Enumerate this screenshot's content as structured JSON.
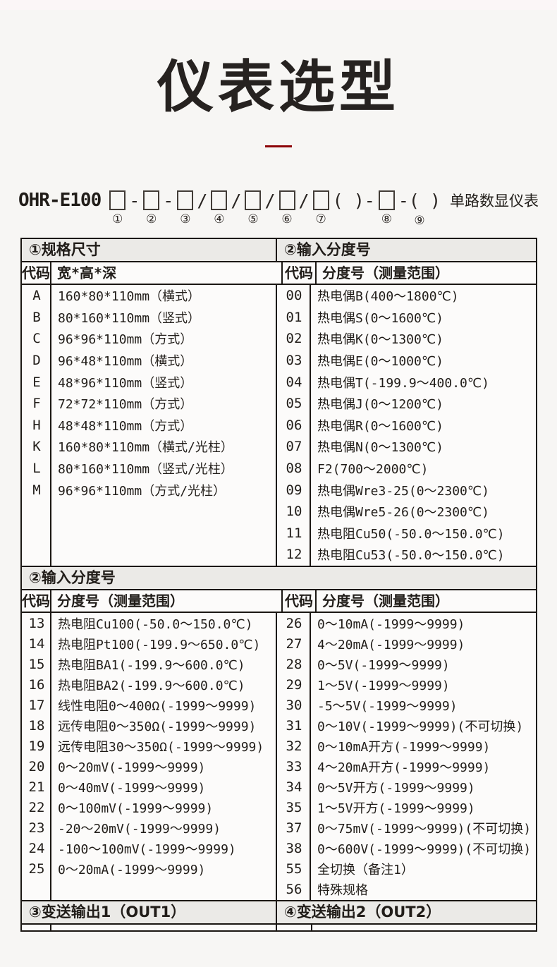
{
  "page": {
    "title": "仪表选型"
  },
  "model_code": {
    "prefix": "OHR-E100",
    "suffix": "单路数显仪表",
    "tokens": [
      {
        "box": true,
        "n": "①"
      },
      {
        "box": false,
        "v": "-"
      },
      {
        "box": true,
        "n": "②"
      },
      {
        "box": false,
        "v": "-"
      },
      {
        "box": true,
        "n": "③"
      },
      {
        "box": false,
        "v": "/"
      },
      {
        "box": true,
        "n": "④"
      },
      {
        "box": false,
        "v": "/"
      },
      {
        "box": true,
        "n": "⑤"
      },
      {
        "box": false,
        "v": "/"
      },
      {
        "box": true,
        "n": "⑥"
      },
      {
        "box": false,
        "v": "/"
      },
      {
        "box": true,
        "n": "⑦"
      },
      {
        "box": false,
        "v": "( )-"
      },
      {
        "box": true,
        "n": "⑧"
      },
      {
        "box": false,
        "v": "-( )",
        "n": "⑨"
      }
    ]
  },
  "section1": {
    "left": {
      "header": "①规格尺寸",
      "col_code": "代码",
      "col_desc": "宽*高*深",
      "rows": [
        [
          "A",
          "160*80*110mm（横式）"
        ],
        [
          "B",
          "80*160*110mm（竖式）"
        ],
        [
          "C",
          "96*96*110mm（方式）"
        ],
        [
          "D",
          "96*48*110mm（横式）"
        ],
        [
          "E",
          "48*96*110mm（竖式）"
        ],
        [
          "F",
          "72*72*110mm（方式）"
        ],
        [
          "H",
          "48*48*110mm（方式）"
        ],
        [
          "K",
          "160*80*110mm（横式/光柱）"
        ],
        [
          "L",
          "80*160*110mm（竖式/光柱）"
        ],
        [
          "M",
          "96*96*110mm（方式/光柱）"
        ]
      ]
    },
    "right": {
      "header": "②输入分度号",
      "col_code": "代码",
      "col_desc": "分度号（测量范围）",
      "rows": [
        [
          "00",
          "热电偶B(400～1800℃)"
        ],
        [
          "01",
          "热电偶S(0～1600℃)"
        ],
        [
          "02",
          "热电偶K(0～1300℃)"
        ],
        [
          "03",
          "热电偶E(0～1000℃)"
        ],
        [
          "04",
          "热电偶T(-199.9～400.0℃)"
        ],
        [
          "05",
          "热电偶J(0～1200℃)"
        ],
        [
          "06",
          "热电偶R(0～1600℃)"
        ],
        [
          "07",
          "热电偶N(0～1300℃)"
        ],
        [
          "08",
          "F2(700～2000℃)"
        ],
        [
          "09",
          "热电偶Wre3-25(0～2300℃)"
        ],
        [
          "10",
          "热电偶Wre5-26(0～2300℃)"
        ],
        [
          "11",
          "热电阻Cu50(-50.0～150.0℃)"
        ],
        [
          "12",
          "热电阻Cu53(-50.0～150.0℃)"
        ]
      ]
    }
  },
  "section2": {
    "header": "②输入分度号",
    "left": {
      "col_code": "代码",
      "col_desc": "分度号（测量范围）",
      "rows": [
        [
          "13",
          "热电阻Cu100(-50.0～150.0℃)"
        ],
        [
          "14",
          "热电阻Pt100(-199.9～650.0℃)"
        ],
        [
          "15",
          "热电阻BA1(-199.9～600.0℃)"
        ],
        [
          "16",
          "热电阻BA2(-199.9～600.0℃)"
        ],
        [
          "17",
          "线性电阻0～400Ω(-1999～9999)"
        ],
        [
          "18",
          "远传电阻0～350Ω(-1999～9999)"
        ],
        [
          "19",
          "远传电阻30～350Ω(-1999～9999)"
        ],
        [
          "20",
          "0～20mV(-1999～9999)"
        ],
        [
          "21",
          "0～40mV(-1999～9999)"
        ],
        [
          "22",
          "0～100mV(-1999～9999)"
        ],
        [
          "23",
          "-20～20mV(-1999～9999)"
        ],
        [
          "24",
          "-100～100mV(-1999～9999)"
        ],
        [
          "25",
          "0～20mA(-1999～9999)"
        ]
      ]
    },
    "right": {
      "col_code": "代码",
      "col_desc": "分度号（测量范围）",
      "rows": [
        [
          "26",
          "0～10mA(-1999～9999)"
        ],
        [
          "27",
          "4～20mA(-1999～9999)"
        ],
        [
          "28",
          "0～5V(-1999～9999)"
        ],
        [
          "29",
          "1～5V(-1999～9999)"
        ],
        [
          "30",
          "-5～5V(-1999～9999)"
        ],
        [
          "31",
          "0～10V(-1999～9999)(不可切换)"
        ],
        [
          "32",
          "0～10mA开方(-1999～9999)"
        ],
        [
          "33",
          "4～20mA开方(-1999～9999)"
        ],
        [
          "34",
          "0～5V开方(-1999～9999)"
        ],
        [
          "35",
          "1～5V开方(-1999～9999)"
        ],
        [
          "37",
          "0～75mV(-1999～9999)(不可切换)"
        ],
        [
          "38",
          "0～600V(-1999～9999)(不可切换)"
        ],
        [
          "55",
          "全切换（备注1）"
        ],
        [
          "56",
          "特殊规格"
        ]
      ]
    }
  },
  "section3": {
    "left_header": "③变送输出1（OUT1）",
    "right_header": "④变送输出2（OUT2）"
  }
}
